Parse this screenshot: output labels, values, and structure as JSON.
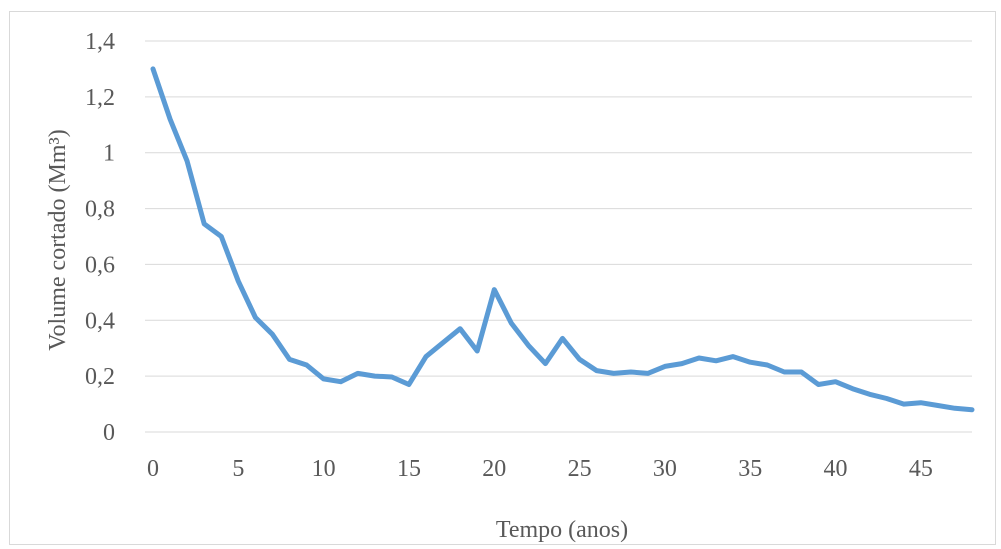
{
  "chart_data": {
    "type": "line",
    "xlabel": "Tempo (anos)",
    "ylabel": "Volume cortado (Mm³)",
    "xlim": [
      0,
      48
    ],
    "ylim": [
      0,
      1.4
    ],
    "x_ticks": [
      0,
      5,
      10,
      15,
      20,
      25,
      30,
      35,
      40,
      45
    ],
    "x_tick_labels": [
      "0",
      "5",
      "10",
      "15",
      "20",
      "25",
      "30",
      "35",
      "40",
      "45"
    ],
    "y_ticks": [
      0,
      0.2,
      0.4,
      0.6,
      0.8,
      1.0,
      1.2,
      1.4
    ],
    "y_tick_labels": [
      "0",
      "0,2",
      "0,4",
      "0,6",
      "0,8",
      "1",
      "1,2",
      "1,4"
    ],
    "grid": true,
    "line_color": "#5b9bd5",
    "series": [
      {
        "x": [
          0,
          1,
          2,
          3,
          4,
          5,
          6,
          7,
          8,
          9,
          10,
          11,
          12,
          13,
          14,
          15,
          16,
          17,
          18,
          19,
          20,
          21,
          22,
          23,
          24,
          25,
          26,
          27,
          28,
          29,
          30,
          31,
          32,
          33,
          34,
          35,
          36,
          37,
          38,
          39,
          40,
          41,
          42,
          43,
          44,
          45,
          46,
          47,
          48
        ],
        "values": [
          1.3,
          1.12,
          0.97,
          0.745,
          0.7,
          0.54,
          0.41,
          0.35,
          0.26,
          0.24,
          0.19,
          0.18,
          0.21,
          0.2,
          0.197,
          0.17,
          0.27,
          0.32,
          0.37,
          0.29,
          0.51,
          0.39,
          0.31,
          0.245,
          0.335,
          0.26,
          0.22,
          0.21,
          0.215,
          0.21,
          0.235,
          0.245,
          0.265,
          0.255,
          0.27,
          0.25,
          0.24,
          0.215,
          0.215,
          0.17,
          0.18,
          0.155,
          0.135,
          0.12,
          0.1,
          0.105,
          0.095,
          0.085,
          0.08
        ]
      }
    ]
  }
}
